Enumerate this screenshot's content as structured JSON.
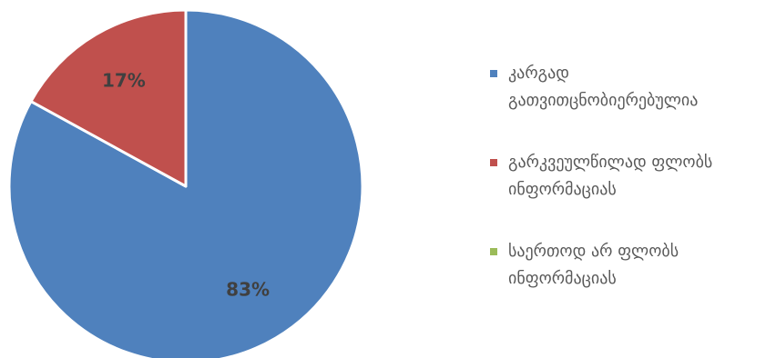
{
  "chart_data": {
    "type": "pie",
    "title": "",
    "categories": [
      "კარგად გათვითცნობიერებულია",
      "გარკვეულწილად ფლობს ინფორმაციას",
      "საერთოდ არ ფლობს ინფორმაციას"
    ],
    "values": [
      83,
      17,
      0
    ],
    "data_labels": [
      "83%",
      "17%",
      ""
    ],
    "colors": [
      "#4F81BD",
      "#C0504D",
      "#9BBB59"
    ],
    "legend_position": "right",
    "start_angle": "12 o'clock, clockwise"
  },
  "legend": {
    "items": [
      {
        "label": "კარგად\nგათვითცნობიერებულია",
        "color": "#4F81BD"
      },
      {
        "label": "გარკვეულწილად ფლობს\nინფორმაციას",
        "color": "#C0504D"
      },
      {
        "label": "საერთოდ არ ფლობს\nინფორმაციას",
        "color": "#9BBB59"
      }
    ]
  }
}
